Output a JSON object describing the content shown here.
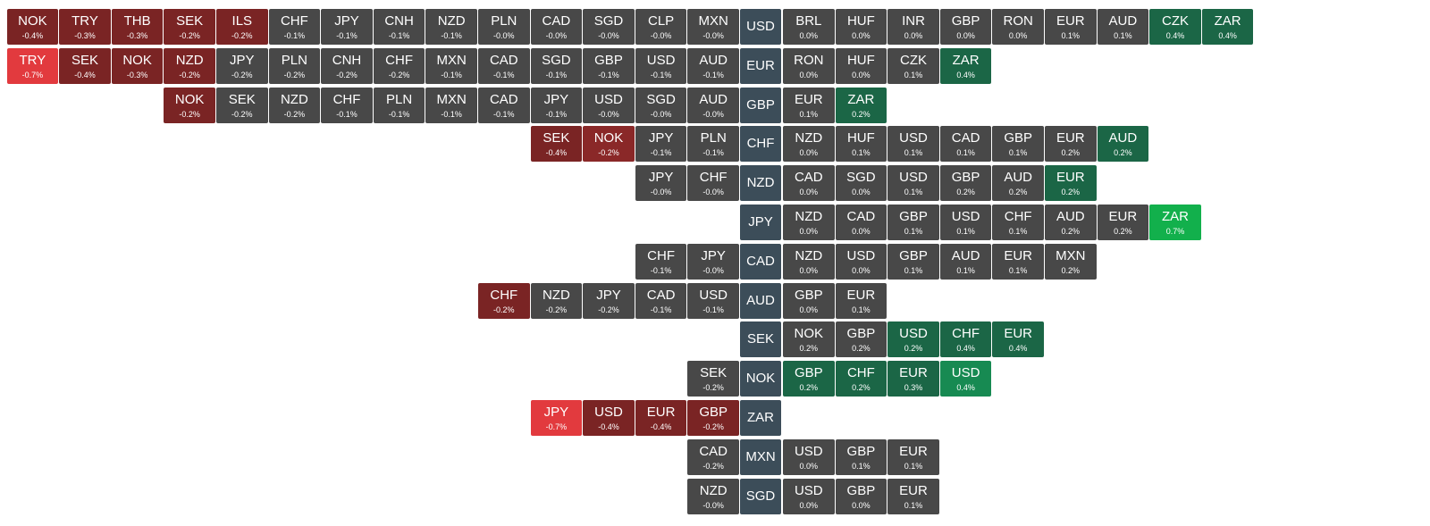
{
  "rows": [
    {
      "base": "USD",
      "left": [
        {
          "code": "NOK",
          "change": "-0.4%",
          "color": "#7a2424"
        },
        {
          "code": "TRY",
          "change": "-0.3%",
          "color": "#7a2424"
        },
        {
          "code": "THB",
          "change": "-0.3%",
          "color": "#7a2424"
        },
        {
          "code": "SEK",
          "change": "-0.2%",
          "color": "#7a2424"
        },
        {
          "code": "ILS",
          "change": "-0.2%",
          "color": "#7a2424"
        },
        {
          "code": "CHF",
          "change": "-0.1%",
          "color": "#484848"
        },
        {
          "code": "JPY",
          "change": "-0.1%",
          "color": "#484848"
        },
        {
          "code": "CNH",
          "change": "-0.1%",
          "color": "#484848"
        },
        {
          "code": "NZD",
          "change": "-0.1%",
          "color": "#484848"
        },
        {
          "code": "PLN",
          "change": "-0.0%",
          "color": "#484848"
        },
        {
          "code": "CAD",
          "change": "-0.0%",
          "color": "#484848"
        },
        {
          "code": "SGD",
          "change": "-0.0%",
          "color": "#484848"
        },
        {
          "code": "CLP",
          "change": "-0.0%",
          "color": "#484848"
        },
        {
          "code": "MXN",
          "change": "-0.0%",
          "color": "#484848"
        }
      ],
      "right": [
        {
          "code": "BRL",
          "change": "0.0%",
          "color": "#484848"
        },
        {
          "code": "HUF",
          "change": "0.0%",
          "color": "#484848"
        },
        {
          "code": "INR",
          "change": "0.0%",
          "color": "#484848"
        },
        {
          "code": "GBP",
          "change": "0.0%",
          "color": "#484848"
        },
        {
          "code": "RON",
          "change": "0.0%",
          "color": "#484848"
        },
        {
          "code": "EUR",
          "change": "0.1%",
          "color": "#484848"
        },
        {
          "code": "AUD",
          "change": "0.1%",
          "color": "#484848"
        },
        {
          "code": "CZK",
          "change": "0.4%",
          "color": "#1b6646"
        },
        {
          "code": "ZAR",
          "change": "0.4%",
          "color": "#1b6646"
        }
      ]
    },
    {
      "base": "EUR",
      "left": [
        {
          "code": "TRY",
          "change": "-0.7%",
          "color": "#e23a3e"
        },
        {
          "code": "SEK",
          "change": "-0.4%",
          "color": "#7a2424"
        },
        {
          "code": "NOK",
          "change": "-0.3%",
          "color": "#7a2424"
        },
        {
          "code": "NZD",
          "change": "-0.2%",
          "color": "#7a2424"
        },
        {
          "code": "JPY",
          "change": "-0.2%",
          "color": "#484848"
        },
        {
          "code": "PLN",
          "change": "-0.2%",
          "color": "#484848"
        },
        {
          "code": "CNH",
          "change": "-0.2%",
          "color": "#484848"
        },
        {
          "code": "CHF",
          "change": "-0.2%",
          "color": "#484848"
        },
        {
          "code": "MXN",
          "change": "-0.1%",
          "color": "#484848"
        },
        {
          "code": "CAD",
          "change": "-0.1%",
          "color": "#484848"
        },
        {
          "code": "SGD",
          "change": "-0.1%",
          "color": "#484848"
        },
        {
          "code": "GBP",
          "change": "-0.1%",
          "color": "#484848"
        },
        {
          "code": "USD",
          "change": "-0.1%",
          "color": "#484848"
        },
        {
          "code": "AUD",
          "change": "-0.1%",
          "color": "#484848"
        }
      ],
      "right": [
        {
          "code": "RON",
          "change": "0.0%",
          "color": "#484848"
        },
        {
          "code": "HUF",
          "change": "0.0%",
          "color": "#484848"
        },
        {
          "code": "CZK",
          "change": "0.1%",
          "color": "#484848"
        },
        {
          "code": "ZAR",
          "change": "0.4%",
          "color": "#1b6646"
        }
      ]
    },
    {
      "base": "GBP",
      "left": [
        {
          "code": "NOK",
          "change": "-0.2%",
          "color": "#7a2424"
        },
        {
          "code": "SEK",
          "change": "-0.2%",
          "color": "#484848"
        },
        {
          "code": "NZD",
          "change": "-0.2%",
          "color": "#484848"
        },
        {
          "code": "CHF",
          "change": "-0.1%",
          "color": "#484848"
        },
        {
          "code": "PLN",
          "change": "-0.1%",
          "color": "#484848"
        },
        {
          "code": "MXN",
          "change": "-0.1%",
          "color": "#484848"
        },
        {
          "code": "CAD",
          "change": "-0.1%",
          "color": "#484848"
        },
        {
          "code": "JPY",
          "change": "-0.1%",
          "color": "#484848"
        },
        {
          "code": "USD",
          "change": "-0.0%",
          "color": "#484848"
        },
        {
          "code": "SGD",
          "change": "-0.0%",
          "color": "#484848"
        },
        {
          "code": "AUD",
          "change": "-0.0%",
          "color": "#484848"
        }
      ],
      "right": [
        {
          "code": "EUR",
          "change": "0.1%",
          "color": "#484848"
        },
        {
          "code": "ZAR",
          "change": "0.2%",
          "color": "#1b6646"
        }
      ]
    },
    {
      "base": "CHF",
      "left": [
        {
          "code": "SEK",
          "change": "-0.4%",
          "color": "#7a2424"
        },
        {
          "code": "NOK",
          "change": "-0.2%",
          "color": "#8a2828"
        },
        {
          "code": "JPY",
          "change": "-0.1%",
          "color": "#484848"
        },
        {
          "code": "PLN",
          "change": "-0.1%",
          "color": "#484848"
        }
      ],
      "right": [
        {
          "code": "NZD",
          "change": "0.0%",
          "color": "#484848"
        },
        {
          "code": "HUF",
          "change": "0.1%",
          "color": "#484848"
        },
        {
          "code": "USD",
          "change": "0.1%",
          "color": "#484848"
        },
        {
          "code": "CAD",
          "change": "0.1%",
          "color": "#484848"
        },
        {
          "code": "GBP",
          "change": "0.1%",
          "color": "#484848"
        },
        {
          "code": "EUR",
          "change": "0.2%",
          "color": "#484848"
        },
        {
          "code": "AUD",
          "change": "0.2%",
          "color": "#1b6646"
        }
      ]
    },
    {
      "base": "NZD",
      "left": [
        {
          "code": "JPY",
          "change": "-0.0%",
          "color": "#484848"
        },
        {
          "code": "CHF",
          "change": "-0.0%",
          "color": "#484848"
        }
      ],
      "right": [
        {
          "code": "CAD",
          "change": "0.0%",
          "color": "#484848"
        },
        {
          "code": "SGD",
          "change": "0.0%",
          "color": "#484848"
        },
        {
          "code": "USD",
          "change": "0.1%",
          "color": "#484848"
        },
        {
          "code": "GBP",
          "change": "0.2%",
          "color": "#484848"
        },
        {
          "code": "AUD",
          "change": "0.2%",
          "color": "#484848"
        },
        {
          "code": "EUR",
          "change": "0.2%",
          "color": "#1b6646"
        }
      ]
    },
    {
      "base": "JPY",
      "left": [],
      "right": [
        {
          "code": "NZD",
          "change": "0.0%",
          "color": "#484848"
        },
        {
          "code": "CAD",
          "change": "0.0%",
          "color": "#484848"
        },
        {
          "code": "GBP",
          "change": "0.1%",
          "color": "#484848"
        },
        {
          "code": "USD",
          "change": "0.1%",
          "color": "#484848"
        },
        {
          "code": "CHF",
          "change": "0.1%",
          "color": "#484848"
        },
        {
          "code": "AUD",
          "change": "0.2%",
          "color": "#484848"
        },
        {
          "code": "EUR",
          "change": "0.2%",
          "color": "#484848"
        },
        {
          "code": "ZAR",
          "change": "0.7%",
          "color": "#12b04c"
        }
      ]
    },
    {
      "base": "CAD",
      "left": [
        {
          "code": "CHF",
          "change": "-0.1%",
          "color": "#484848"
        },
        {
          "code": "JPY",
          "change": "-0.0%",
          "color": "#484848"
        }
      ],
      "right": [
        {
          "code": "NZD",
          "change": "0.0%",
          "color": "#484848"
        },
        {
          "code": "USD",
          "change": "0.0%",
          "color": "#484848"
        },
        {
          "code": "GBP",
          "change": "0.1%",
          "color": "#484848"
        },
        {
          "code": "AUD",
          "change": "0.1%",
          "color": "#484848"
        },
        {
          "code": "EUR",
          "change": "0.1%",
          "color": "#484848"
        },
        {
          "code": "MXN",
          "change": "0.2%",
          "color": "#484848"
        }
      ]
    },
    {
      "base": "AUD",
      "left": [
        {
          "code": "CHF",
          "change": "-0.2%",
          "color": "#7a2424"
        },
        {
          "code": "NZD",
          "change": "-0.2%",
          "color": "#484848"
        },
        {
          "code": "JPY",
          "change": "-0.2%",
          "color": "#484848"
        },
        {
          "code": "CAD",
          "change": "-0.1%",
          "color": "#484848"
        },
        {
          "code": "USD",
          "change": "-0.1%",
          "color": "#484848"
        }
      ],
      "right": [
        {
          "code": "GBP",
          "change": "0.0%",
          "color": "#484848"
        },
        {
          "code": "EUR",
          "change": "0.1%",
          "color": "#484848"
        }
      ]
    },
    {
      "base": "SEK",
      "left": [],
      "right": [
        {
          "code": "NOK",
          "change": "0.2%",
          "color": "#484848"
        },
        {
          "code": "GBP",
          "change": "0.2%",
          "color": "#484848"
        },
        {
          "code": "USD",
          "change": "0.2%",
          "color": "#1b6646"
        },
        {
          "code": "CHF",
          "change": "0.4%",
          "color": "#1b6646"
        },
        {
          "code": "EUR",
          "change": "0.4%",
          "color": "#1b6646"
        }
      ]
    },
    {
      "base": "NOK",
      "left": [
        {
          "code": "SEK",
          "change": "-0.2%",
          "color": "#484848"
        }
      ],
      "right": [
        {
          "code": "GBP",
          "change": "0.2%",
          "color": "#1b6646"
        },
        {
          "code": "CHF",
          "change": "0.2%",
          "color": "#1b6646"
        },
        {
          "code": "EUR",
          "change": "0.3%",
          "color": "#1b6646"
        },
        {
          "code": "USD",
          "change": "0.4%",
          "color": "#178a52"
        }
      ]
    },
    {
      "base": "ZAR",
      "left": [
        {
          "code": "JPY",
          "change": "-0.7%",
          "color": "#e23a3e"
        },
        {
          "code": "USD",
          "change": "-0.4%",
          "color": "#7a2424"
        },
        {
          "code": "EUR",
          "change": "-0.4%",
          "color": "#7a2424"
        },
        {
          "code": "GBP",
          "change": "-0.2%",
          "color": "#7a2424"
        }
      ],
      "right": []
    },
    {
      "base": "MXN",
      "left": [
        {
          "code": "CAD",
          "change": "-0.2%",
          "color": "#484848"
        }
      ],
      "right": [
        {
          "code": "USD",
          "change": "0.0%",
          "color": "#484848"
        },
        {
          "code": "GBP",
          "change": "0.1%",
          "color": "#484848"
        },
        {
          "code": "EUR",
          "change": "0.1%",
          "color": "#484848"
        }
      ]
    },
    {
      "base": "SGD",
      "left": [
        {
          "code": "NZD",
          "change": "-0.0%",
          "color": "#484848"
        }
      ],
      "right": [
        {
          "code": "USD",
          "change": "0.0%",
          "color": "#484848"
        },
        {
          "code": "GBP",
          "change": "0.0%",
          "color": "#484848"
        },
        {
          "code": "EUR",
          "change": "0.1%",
          "color": "#484848"
        }
      ]
    }
  ]
}
